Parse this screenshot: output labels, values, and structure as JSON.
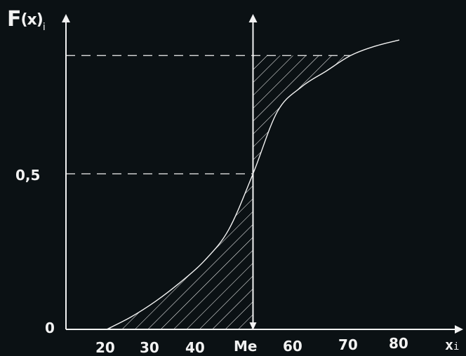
{
  "chart_data": {
    "type": "line",
    "ylabel": {
      "main": "F",
      "paren": "(x)",
      "sub": "i"
    },
    "xlabel": {
      "main": "x",
      "sub": "i"
    },
    "x_ticks": [
      "20",
      "30",
      "40",
      "Me",
      "60",
      "70",
      "80"
    ],
    "y_ticks": [
      "0",
      "0,5"
    ],
    "median_x": 50,
    "ylim": [
      0,
      1
    ],
    "xlim": [
      10,
      88
    ],
    "upper_reference_y": 0.88,
    "curve": [
      [
        20,
        0.0
      ],
      [
        25,
        0.04
      ],
      [
        30,
        0.09
      ],
      [
        35,
        0.15
      ],
      [
        40,
        0.22
      ],
      [
        45,
        0.32
      ],
      [
        50,
        0.5
      ],
      [
        55,
        0.7
      ],
      [
        60,
        0.78
      ],
      [
        65,
        0.83
      ],
      [
        70,
        0.88
      ],
      [
        75,
        0.91
      ],
      [
        80,
        0.93
      ]
    ],
    "colors": {
      "background": "#0b1114",
      "ink": "#f2f2f2"
    }
  }
}
